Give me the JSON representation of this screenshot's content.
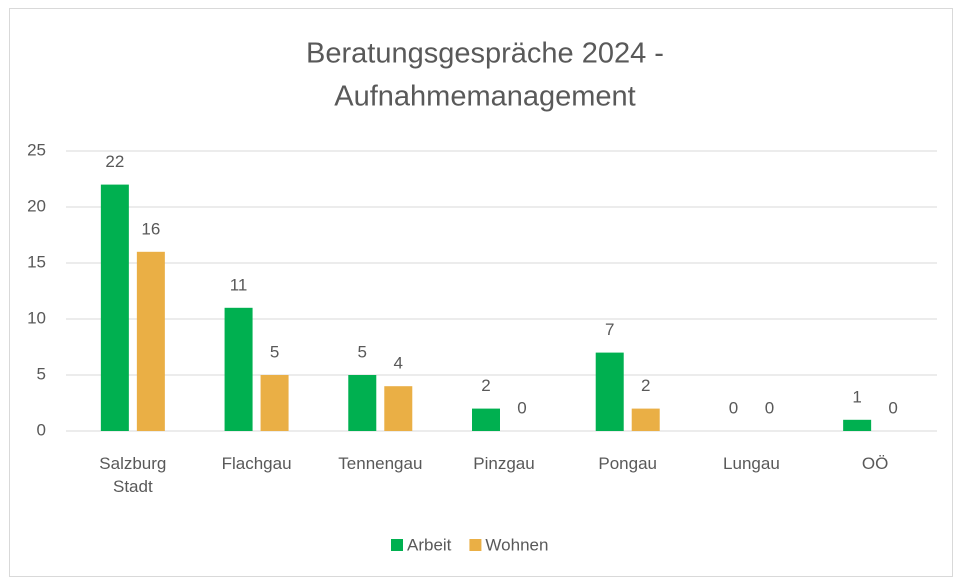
{
  "chart_data": {
    "type": "bar",
    "title": [
      "Beratungsgespräche 2024 -",
      "Aufnahmemanagement"
    ],
    "categories": [
      "Salzburg Stadt",
      "Flachgau",
      "Tennengau",
      "Pinzgau",
      "Pongau",
      "Lungau",
      "OÖ"
    ],
    "series": [
      {
        "name": "Arbeit",
        "color": "#00b050",
        "values": [
          22,
          11,
          5,
          2,
          7,
          0,
          1
        ]
      },
      {
        "name": "Wohnen",
        "color": "#eaaf45",
        "values": [
          16,
          5,
          4,
          0,
          2,
          0,
          0
        ]
      }
    ],
    "ylim": [
      0,
      25
    ],
    "yticks": [
      0,
      5,
      10,
      15,
      20,
      25
    ],
    "grid": true,
    "legend": "bottom"
  }
}
